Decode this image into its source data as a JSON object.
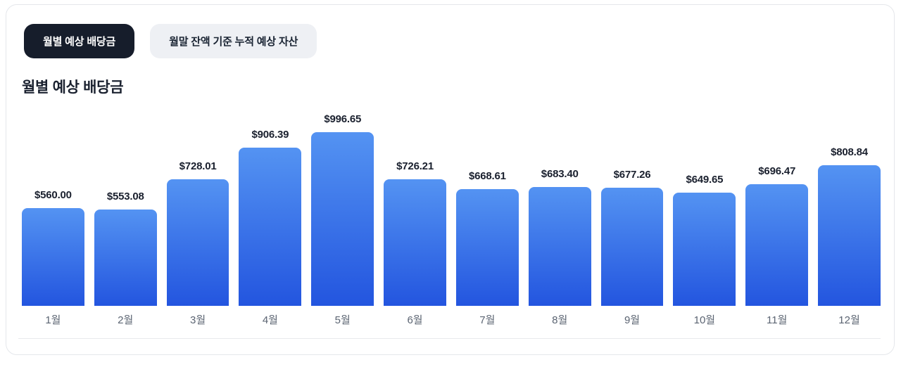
{
  "tabs": [
    {
      "label": "월별 예상 배당금",
      "active": true
    },
    {
      "label": "월말 잔액 기준 누적 예상 자산",
      "active": false
    }
  ],
  "title": "월별 예상 배당금",
  "chart_data": {
    "type": "bar",
    "title": "월별 예상 배당금",
    "categories": [
      "1월",
      "2월",
      "3월",
      "4월",
      "5월",
      "6월",
      "7월",
      "8월",
      "9월",
      "10월",
      "11월",
      "12월"
    ],
    "values": [
      560.0,
      553.08,
      728.01,
      906.39,
      996.65,
      726.21,
      668.61,
      683.4,
      677.26,
      649.65,
      696.47,
      808.84
    ],
    "value_labels": [
      "$560.00",
      "$553.08",
      "$728.01",
      "$906.39",
      "$996.65",
      "$726.21",
      "$668.61",
      "$683.40",
      "$677.26",
      "$649.65",
      "$696.47",
      "$808.84"
    ],
    "xlabel": "",
    "ylabel": "",
    "ylim": [
      0,
      1000
    ],
    "grid": false,
    "legend": false,
    "bar_gradient": [
      "#5493F2",
      "#2355DF"
    ]
  },
  "colors": {
    "active_tab_bg": "#161D2B",
    "active_tab_text": "#FFFFFF",
    "inactive_tab_bg": "#EEF0F4",
    "inactive_tab_text": "#1A2433",
    "bar_top": "#5493F2",
    "bar_bottom": "#2355DF",
    "value_label": "#1A202E",
    "axis_label": "#5B6472",
    "card_border": "#E5E7EB",
    "divider": "#E8EAED"
  }
}
